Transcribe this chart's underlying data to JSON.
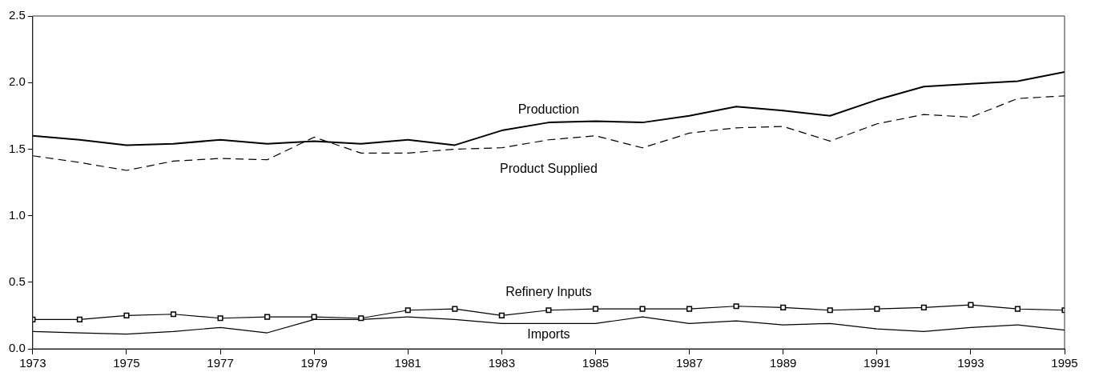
{
  "chart_data": {
    "type": "line",
    "x": [
      1973,
      1974,
      1975,
      1976,
      1977,
      1978,
      1979,
      1980,
      1981,
      1982,
      1983,
      1984,
      1985,
      1986,
      1987,
      1988,
      1989,
      1990,
      1991,
      1992,
      1993,
      1994,
      1995
    ],
    "series": [
      {
        "name": "Production",
        "color": "#000000",
        "line_style": "solid",
        "marker": "none",
        "values": [
          1.6,
          1.57,
          1.53,
          1.54,
          1.57,
          1.54,
          1.56,
          1.54,
          1.57,
          1.53,
          1.64,
          1.7,
          1.71,
          1.7,
          1.75,
          1.82,
          1.79,
          1.75,
          1.87,
          1.97,
          1.99,
          2.01,
          2.08
        ]
      },
      {
        "name": "Product Supplied",
        "color": "#000000",
        "line_style": "dashed",
        "marker": "none",
        "values": [
          1.45,
          1.4,
          1.34,
          1.41,
          1.43,
          1.42,
          1.59,
          1.47,
          1.47,
          1.5,
          1.51,
          1.57,
          1.6,
          1.51,
          1.62,
          1.66,
          1.67,
          1.56,
          1.69,
          1.76,
          1.74,
          1.88,
          1.9
        ]
      },
      {
        "name": "Refinery Inputs",
        "color": "#000000",
        "line_style": "solid",
        "marker": "square",
        "values": [
          0.22,
          0.22,
          0.25,
          0.26,
          0.23,
          0.24,
          0.24,
          0.23,
          0.29,
          0.3,
          0.25,
          0.29,
          0.3,
          0.3,
          0.3,
          0.32,
          0.31,
          0.29,
          0.3,
          0.31,
          0.33,
          0.3,
          0.29
        ]
      },
      {
        "name": "Imports",
        "color": "#000000",
        "line_style": "solid",
        "marker": "none",
        "values": [
          0.13,
          0.12,
          0.11,
          0.13,
          0.16,
          0.12,
          0.22,
          0.22,
          0.24,
          0.22,
          0.19,
          0.19,
          0.19,
          0.24,
          0.19,
          0.21,
          0.18,
          0.19,
          0.15,
          0.13,
          0.16,
          0.18,
          0.14
        ]
      }
    ],
    "xlim": [
      1973,
      1995
    ],
    "xticks": [
      1973,
      1975,
      1977,
      1979,
      1981,
      1983,
      1985,
      1987,
      1989,
      1991,
      1993,
      1995
    ],
    "ylim": [
      0,
      2.5
    ],
    "yticks": [
      {
        "value": 0,
        "label": "0.0"
      },
      {
        "value": 0.5,
        "label": "0.5"
      },
      {
        "value": 1,
        "label": "1.0"
      },
      {
        "value": 1.5,
        "label": "1.5"
      },
      {
        "value": 2,
        "label": "2.0"
      },
      {
        "value": 2.5,
        "label": "2.5"
      }
    ],
    "grid": false,
    "legend": false
  }
}
